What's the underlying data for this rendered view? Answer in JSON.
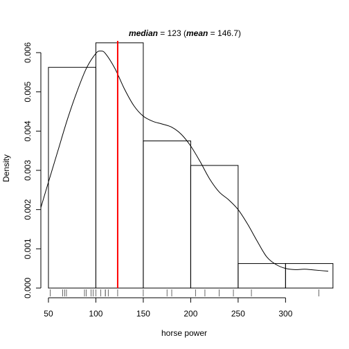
{
  "chart_data": {
    "type": "histogram",
    "title_parts": {
      "median_label": "median",
      "median_value_text": " = 123 (",
      "mean_label": "mean",
      "mean_value_text": " = 146.7)"
    },
    "xlabel": "horse power",
    "ylabel": "Density",
    "xlim": [
      42,
      345
    ],
    "ylim": [
      0,
      0.0063
    ],
    "x_ticks": [
      50,
      100,
      150,
      200,
      250,
      300
    ],
    "x_tick_labels": [
      "50",
      "100",
      "150",
      "200",
      "250",
      "300"
    ],
    "y_ticks": [
      0,
      0.001,
      0.002,
      0.003,
      0.004,
      0.005,
      0.006
    ],
    "y_tick_labels": [
      "0.000",
      "0.001",
      "0.002",
      "0.003",
      "0.004",
      "0.005",
      "0.006"
    ],
    "bins": [
      {
        "start": 50,
        "end": 100,
        "density": 0.005625
      },
      {
        "start": 100,
        "end": 150,
        "density": 0.00625
      },
      {
        "start": 150,
        "end": 200,
        "density": 0.00375
      },
      {
        "start": 200,
        "end": 250,
        "density": 0.003125
      },
      {
        "start": 250,
        "end": 300,
        "density": 0.000625
      },
      {
        "start": 300,
        "end": 350,
        "density": 0.000625
      }
    ],
    "median": 123,
    "mean": 146.7,
    "median_line_color": "#ff0000",
    "density_curve": {
      "x": [
        42,
        50,
        60,
        70,
        80,
        90,
        100,
        105,
        110,
        120,
        130,
        140,
        150,
        160,
        170,
        180,
        190,
        200,
        210,
        220,
        230,
        240,
        250,
        260,
        270,
        280,
        290,
        300,
        310,
        320,
        330,
        345
      ],
      "y": [
        0.00205,
        0.0027,
        0.0035,
        0.0043,
        0.005,
        0.0056,
        0.00598,
        0.00604,
        0.00598,
        0.0056,
        0.00508,
        0.00465,
        0.00438,
        0.00425,
        0.00418,
        0.0041,
        0.00392,
        0.00362,
        0.00322,
        0.00278,
        0.00245,
        0.00225,
        0.002,
        0.00163,
        0.0012,
        0.0008,
        0.0006,
        0.0005,
        0.00047,
        0.00048,
        0.00046,
        0.00043
      ]
    },
    "rug": [
      52,
      65,
      67,
      69,
      88,
      90,
      95,
      97,
      100,
      105,
      110,
      110,
      113,
      123,
      150,
      175,
      180,
      205,
      215,
      230,
      245,
      264,
      335
    ]
  }
}
